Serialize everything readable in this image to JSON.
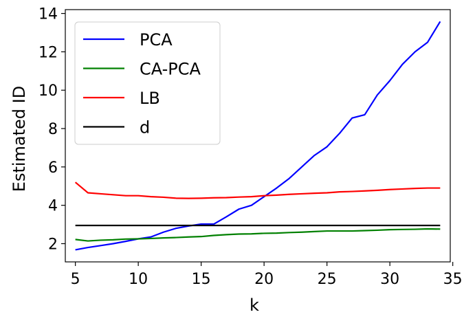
{
  "chart_data": {
    "type": "line",
    "xlabel": "k",
    "ylabel": "Estimated ID",
    "xlim": [
      4.2,
      34.8
    ],
    "ylim": [
      1.05,
      14.2
    ],
    "xticks": [
      5,
      10,
      15,
      20,
      25,
      30,
      35
    ],
    "yticks": [
      2,
      4,
      6,
      8,
      10,
      12,
      14
    ],
    "grid": false,
    "legend_position": "top-left",
    "x": [
      5,
      6,
      7,
      8,
      9,
      10,
      11,
      12,
      13,
      14,
      15,
      16,
      17,
      18,
      19,
      20,
      21,
      22,
      23,
      24,
      25,
      26,
      27,
      28,
      29,
      30,
      31,
      32,
      33,
      34
    ],
    "series": [
      {
        "name": "PCA",
        "color": "#0000ff",
        "values": [
          1.68,
          1.8,
          1.9,
          2.0,
          2.12,
          2.25,
          2.35,
          2.6,
          2.8,
          2.92,
          3.02,
          3.02,
          3.4,
          3.8,
          4.0,
          4.45,
          4.9,
          5.4,
          6.0,
          6.6,
          7.05,
          7.75,
          8.55,
          8.72,
          9.75,
          10.5,
          11.35,
          12.0,
          12.5,
          13.58
        ]
      },
      {
        "name": "CA-PCA",
        "color": "#008000",
        "values": [
          2.22,
          2.14,
          2.18,
          2.2,
          2.24,
          2.25,
          2.27,
          2.3,
          2.32,
          2.35,
          2.37,
          2.43,
          2.47,
          2.5,
          2.51,
          2.54,
          2.55,
          2.58,
          2.6,
          2.63,
          2.66,
          2.66,
          2.66,
          2.68,
          2.7,
          2.73,
          2.74,
          2.75,
          2.77,
          2.76
        ]
      },
      {
        "name": "LB",
        "color": "#ff0000",
        "values": [
          5.2,
          4.65,
          4.6,
          4.55,
          4.5,
          4.5,
          4.45,
          4.42,
          4.37,
          4.36,
          4.37,
          4.39,
          4.4,
          4.43,
          4.45,
          4.5,
          4.53,
          4.57,
          4.6,
          4.63,
          4.65,
          4.7,
          4.72,
          4.75,
          4.78,
          4.82,
          4.85,
          4.88,
          4.9,
          4.9
        ]
      },
      {
        "name": "d",
        "color": "#000000",
        "values": [
          2.95,
          2.95,
          2.95,
          2.95,
          2.95,
          2.95,
          2.95,
          2.95,
          2.95,
          2.95,
          2.95,
          2.95,
          2.95,
          2.95,
          2.95,
          2.95,
          2.95,
          2.95,
          2.95,
          2.95,
          2.95,
          2.95,
          2.95,
          2.95,
          2.95,
          2.95,
          2.95,
          2.95,
          2.95,
          2.95
        ]
      }
    ]
  }
}
